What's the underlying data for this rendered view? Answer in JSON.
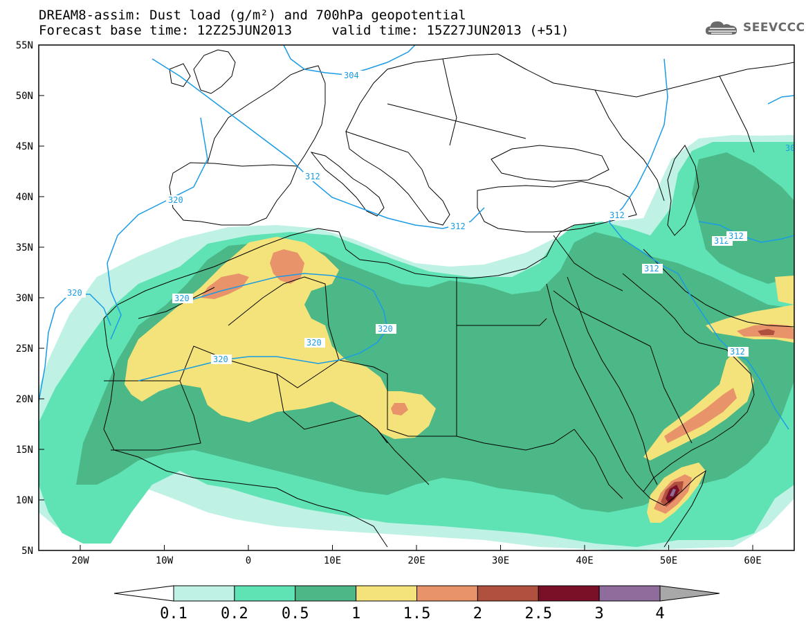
{
  "title_line1": "DREAM8-assim: Dust load (g/m²) and 700hPa geopotential",
  "title_line2": "Forecast base time: 12Z25JUN2013     valid time: 15Z27JUN2013 (+51)",
  "logo_text": "SEEVCCC",
  "lat_labels": [
    "55N",
    "50N",
    "45N",
    "40N",
    "35N",
    "30N",
    "25N",
    "20N",
    "15N",
    "10N",
    "5N"
  ],
  "lon_labels": [
    "20W",
    "10W",
    "0",
    "10E",
    "20E",
    "30E",
    "40E",
    "50E",
    "60E"
  ],
  "contour_labels": [
    "304",
    "312",
    "312",
    "312",
    "312",
    "312",
    "312",
    "312",
    "320",
    "320",
    "320",
    "320",
    "320",
    "320",
    "30"
  ],
  "colorbar": {
    "colors": [
      "#ffffff",
      "#bff2e4",
      "#5fe3b4",
      "#4cb888",
      "#f4e37a",
      "#e9936b",
      "#b0503e",
      "#7a1028",
      "#8e6d9c",
      "#a8a8a8"
    ],
    "labels": [
      "0.1",
      "0.2",
      "0.5",
      "1",
      "1.5",
      "2",
      "2.5",
      "3",
      "4"
    ]
  },
  "colors": {
    "contour": "#1a9be6",
    "ocean": "#ffffff",
    "border": "#000000"
  }
}
